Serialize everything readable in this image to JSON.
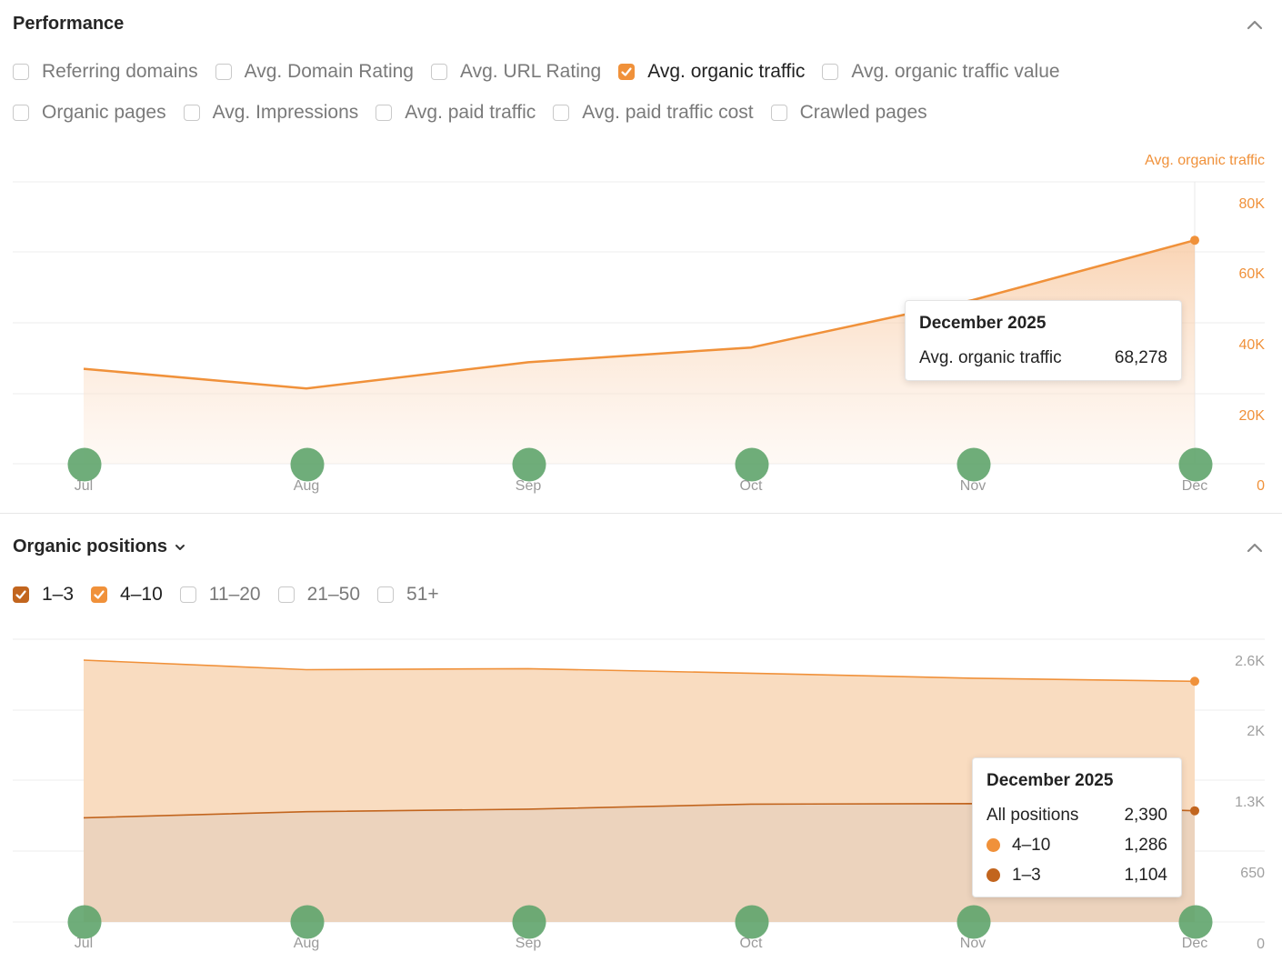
{
  "performance": {
    "title": "Performance",
    "metrics_row1": [
      {
        "label": "Referring domains",
        "checked": false
      },
      {
        "label": "Avg. Domain Rating",
        "checked": false
      },
      {
        "label": "Avg. URL Rating",
        "checked": false
      },
      {
        "label": "Avg. organic traffic",
        "checked": true
      },
      {
        "label": "Avg. organic traffic value",
        "checked": false
      }
    ],
    "metrics_row2": [
      {
        "label": "Organic pages",
        "checked": false
      },
      {
        "label": "Avg. Impressions",
        "checked": false
      },
      {
        "label": "Avg. paid traffic",
        "checked": false
      },
      {
        "label": "Avg. paid traffic cost",
        "checked": false
      },
      {
        "label": "Crawled pages",
        "checked": false
      }
    ],
    "tooltip": {
      "title": "December 2025",
      "row_label": "Avg. organic traffic",
      "row_value": "68,278"
    }
  },
  "positions": {
    "title": "Organic positions",
    "filters": [
      {
        "label": "1–3",
        "checked": true,
        "color": "#c2651e"
      },
      {
        "label": "4–10",
        "checked": true,
        "color": "#f0913a"
      },
      {
        "label": "11–20",
        "checked": false
      },
      {
        "label": "21–50",
        "checked": false
      },
      {
        "label": "51+",
        "checked": false
      }
    ],
    "tooltip": {
      "title": "December 2025",
      "rows": [
        {
          "label": "All positions",
          "value": "2,390"
        },
        {
          "label": "4–10",
          "value": "1,286",
          "color": "#f0913a"
        },
        {
          "label": "1–3",
          "value": "1,104",
          "color": "#c2651e"
        }
      ]
    }
  },
  "colors": {
    "accent": "#f0913a",
    "dark_orange": "#c2651e",
    "marker_green": "#5fa46c"
  },
  "icons": {
    "collapse": "chevron-up-icon",
    "dropdown": "chevron-down-icon",
    "check": "check-icon"
  },
  "chart_data": [
    {
      "type": "area",
      "title": "",
      "ylabel": "Avg. organic traffic",
      "x": [
        "Jul",
        "Aug",
        "Sep",
        "Oct",
        "Nov",
        "Dec"
      ],
      "series": [
        {
          "name": "Avg. organic traffic",
          "values": [
            29000,
            23000,
            31000,
            35500,
            50000,
            68278
          ]
        }
      ],
      "yticks": [
        "0",
        "20K",
        "40K",
        "60K",
        "80K"
      ],
      "ylim": [
        0,
        80000
      ],
      "grid": true,
      "marker_highlight": "Dec"
    },
    {
      "type": "area",
      "title": "",
      "x": [
        "Jul",
        "Aug",
        "Sep",
        "Oct",
        "Nov",
        "Dec"
      ],
      "series": [
        {
          "name": "1–3",
          "values": [
            1035,
            1095,
            1120,
            1170,
            1175,
            1104
          ]
        },
        {
          "name": "4–10",
          "values": [
            1565,
            1410,
            1395,
            1300,
            1245,
            1286
          ]
        }
      ],
      "stacked": true,
      "yticks": [
        "0",
        "650",
        "1.3K",
        "2K",
        "2.6K"
      ],
      "ylim": [
        0,
        2600
      ],
      "grid": true,
      "marker_highlight": "Dec"
    }
  ]
}
